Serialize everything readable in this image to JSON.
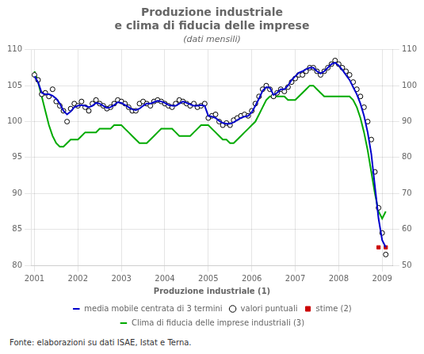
{
  "chart_data": {
    "type": "line",
    "title": [
      "Produzione industriale",
      "e clima di fiducia delle imprese"
    ],
    "subtitle": "(dati mensili)",
    "annotations": [
      "Fonte: elaborazioni su dati ISAE, Istat e Terna."
    ],
    "legend_title": "Produzione industriale (1)",
    "legend": "bottom",
    "grid": true,
    "xlim": [
      2000.92,
      2009.25
    ],
    "xticks": [
      2001,
      2002,
      2003,
      2004,
      2005,
      2006,
      2007,
      2008,
      2009
    ],
    "ylim": [
      80,
      110
    ],
    "yticks": [
      80,
      85,
      90,
      95,
      100,
      105,
      110
    ],
    "y2lim": [
      50,
      110
    ],
    "y2ticks": [
      50,
      60,
      70,
      80,
      90,
      100,
      110
    ],
    "series": [
      {
        "name": "media mobile centrata di 3 termini",
        "type": "line",
        "color": "#0000cc",
        "x": [
          2001.0,
          2001.083,
          2001.167,
          2001.25,
          2001.333,
          2001.417,
          2001.5,
          2001.583,
          2001.667,
          2001.75,
          2001.833,
          2001.917,
          2002.0,
          2002.083,
          2002.167,
          2002.25,
          2002.333,
          2002.417,
          2002.5,
          2002.583,
          2002.667,
          2002.75,
          2002.833,
          2002.917,
          2003.0,
          2003.083,
          2003.167,
          2003.25,
          2003.333,
          2003.417,
          2003.5,
          2003.583,
          2003.667,
          2003.75,
          2003.833,
          2003.917,
          2004.0,
          2004.083,
          2004.167,
          2004.25,
          2004.333,
          2004.417,
          2004.5,
          2004.583,
          2004.667,
          2004.75,
          2004.833,
          2004.917,
          2005.0,
          2005.083,
          2005.167,
          2005.25,
          2005.333,
          2005.417,
          2005.5,
          2005.583,
          2005.667,
          2005.75,
          2005.833,
          2005.917,
          2006.0,
          2006.083,
          2006.167,
          2006.25,
          2006.333,
          2006.417,
          2006.5,
          2006.583,
          2006.667,
          2006.75,
          2006.833,
          2006.917,
          2007.0,
          2007.083,
          2007.167,
          2007.25,
          2007.333,
          2007.417,
          2007.5,
          2007.583,
          2007.667,
          2007.75,
          2007.833,
          2007.917,
          2008.0,
          2008.083,
          2008.167,
          2008.25,
          2008.333,
          2008.417,
          2008.5,
          2008.583,
          2008.667,
          2008.75,
          2008.833,
          2008.917,
          2009.0,
          2009.083
        ],
        "values": [
          106.3,
          105.5,
          104.0,
          103.8,
          103.8,
          103.6,
          103.2,
          102.5,
          101.5,
          101.0,
          101.4,
          102.0,
          102.2,
          102.3,
          102.2,
          102.0,
          102.2,
          102.6,
          102.5,
          102.2,
          101.9,
          102.0,
          102.3,
          102.7,
          102.6,
          102.3,
          102.0,
          101.7,
          101.6,
          101.8,
          102.2,
          102.5,
          102.5,
          102.7,
          102.9,
          102.8,
          102.6,
          102.3,
          102.2,
          102.2,
          102.5,
          102.8,
          102.6,
          102.4,
          102.2,
          102.2,
          102.3,
          102.2,
          100.8,
          100.7,
          100.5,
          100.1,
          99.8,
          99.7,
          99.7,
          99.9,
          100.2,
          100.5,
          100.7,
          100.8,
          101.3,
          102.2,
          103.2,
          104.3,
          104.8,
          104.7,
          103.7,
          104.0,
          104.5,
          104.5,
          105.0,
          105.8,
          106.3,
          106.8,
          107.0,
          107.3,
          107.5,
          107.5,
          107.0,
          106.7,
          107.0,
          107.5,
          108.0,
          108.2,
          107.8,
          107.2,
          106.5,
          105.8,
          104.8,
          103.8,
          102.5,
          100.8,
          98.5,
          95.5,
          91.0,
          86.5,
          83.5,
          82.5
        ]
      },
      {
        "name": "valori puntuali",
        "type": "scatter",
        "marker": "circle_open",
        "color": "#000000",
        "x": [
          2001.0,
          2001.083,
          2001.167,
          2001.25,
          2001.333,
          2001.417,
          2001.5,
          2001.583,
          2001.667,
          2001.75,
          2001.833,
          2001.917,
          2002.0,
          2002.083,
          2002.167,
          2002.25,
          2002.333,
          2002.417,
          2002.5,
          2002.583,
          2002.667,
          2002.75,
          2002.833,
          2002.917,
          2003.0,
          2003.083,
          2003.167,
          2003.25,
          2003.333,
          2003.417,
          2003.5,
          2003.583,
          2003.667,
          2003.75,
          2003.833,
          2003.917,
          2004.0,
          2004.083,
          2004.167,
          2004.25,
          2004.333,
          2004.417,
          2004.5,
          2004.583,
          2004.667,
          2004.75,
          2004.833,
          2004.917,
          2005.0,
          2005.083,
          2005.167,
          2005.25,
          2005.333,
          2005.417,
          2005.5,
          2005.583,
          2005.667,
          2005.75,
          2005.833,
          2005.917,
          2006.0,
          2006.083,
          2006.167,
          2006.25,
          2006.333,
          2006.417,
          2006.5,
          2006.583,
          2006.667,
          2006.75,
          2006.833,
          2006.917,
          2007.0,
          2007.083,
          2007.167,
          2007.25,
          2007.333,
          2007.417,
          2007.5,
          2007.583,
          2007.667,
          2007.75,
          2007.833,
          2007.917,
          2008.0,
          2008.083,
          2008.167,
          2008.25,
          2008.333,
          2008.417,
          2008.5,
          2008.583,
          2008.667,
          2008.75,
          2008.833,
          2008.917,
          2009.0,
          2009.083
        ],
        "values": [
          106.5,
          105.8,
          103.8,
          104.0,
          103.5,
          104.5,
          102.8,
          102.2,
          101.5,
          100.0,
          101.8,
          102.5,
          102.2,
          102.8,
          102.0,
          101.5,
          102.5,
          103.0,
          102.5,
          102.2,
          101.8,
          102.0,
          102.5,
          103.0,
          102.8,
          102.5,
          102.0,
          101.5,
          101.5,
          102.5,
          102.8,
          102.5,
          102.2,
          102.8,
          103.0,
          102.8,
          102.5,
          102.2,
          102.0,
          102.5,
          103.0,
          102.8,
          102.5,
          102.2,
          102.5,
          102.0,
          102.2,
          102.5,
          100.5,
          100.8,
          101.0,
          100.0,
          99.5,
          99.8,
          99.5,
          100.2,
          100.5,
          100.8,
          101.0,
          100.8,
          101.5,
          102.5,
          103.5,
          104.5,
          105.0,
          104.5,
          103.5,
          104.0,
          104.5,
          104.2,
          104.8,
          105.5,
          106.0,
          106.5,
          106.5,
          107.0,
          107.5,
          107.5,
          107.0,
          106.5,
          107.0,
          107.5,
          108.0,
          108.5,
          108.0,
          107.5,
          107.0,
          106.5,
          105.5,
          104.5,
          103.5,
          102.0,
          100.0,
          97.5,
          93.0,
          88.0,
          84.5,
          81.5
        ]
      },
      {
        "name": "stime (2)",
        "type": "scatter",
        "marker": "square",
        "color": "#cc0000",
        "x": [
          2008.917,
          2009.083
        ],
        "values": [
          82.5,
          82.5
        ]
      },
      {
        "name": "Clima di fiducia delle imprese industriali (3)",
        "type": "line",
        "color": "#00aa00",
        "axis": "y2",
        "x": [
          2001.0,
          2001.083,
          2001.167,
          2001.25,
          2001.333,
          2001.417,
          2001.5,
          2001.583,
          2001.667,
          2001.75,
          2001.833,
          2001.917,
          2002.0,
          2002.083,
          2002.167,
          2002.25,
          2002.333,
          2002.417,
          2002.5,
          2002.583,
          2002.667,
          2002.75,
          2002.833,
          2002.917,
          2003.0,
          2003.083,
          2003.167,
          2003.25,
          2003.333,
          2003.417,
          2003.5,
          2003.583,
          2003.667,
          2003.75,
          2003.833,
          2003.917,
          2004.0,
          2004.083,
          2004.167,
          2004.25,
          2004.333,
          2004.417,
          2004.5,
          2004.583,
          2004.667,
          2004.75,
          2004.833,
          2004.917,
          2005.0,
          2005.083,
          2005.167,
          2005.25,
          2005.333,
          2005.417,
          2005.5,
          2005.583,
          2005.667,
          2005.75,
          2005.833,
          2005.917,
          2006.0,
          2006.083,
          2006.167,
          2006.25,
          2006.333,
          2006.417,
          2006.5,
          2006.583,
          2006.667,
          2006.75,
          2006.833,
          2006.917,
          2007.0,
          2007.083,
          2007.167,
          2007.25,
          2007.333,
          2007.417,
          2007.5,
          2007.583,
          2007.667,
          2007.75,
          2007.833,
          2007.917,
          2008.0,
          2008.083,
          2008.167,
          2008.25,
          2008.333,
          2008.417,
          2008.5,
          2008.583,
          2008.667,
          2008.75,
          2008.833,
          2008.917,
          2009.0,
          2009.083
        ],
        "values": [
          104,
          101,
          97,
          93,
          89,
          86,
          84,
          83,
          83,
          84,
          85,
          85,
          85,
          86,
          87,
          87,
          87,
          87,
          88,
          88,
          88,
          88,
          89,
          89,
          89,
          88,
          87,
          86,
          85,
          84,
          84,
          84,
          85,
          86,
          87,
          88,
          88,
          88,
          88,
          87,
          86,
          86,
          86,
          86,
          87,
          88,
          89,
          89,
          89,
          88,
          87,
          86,
          85,
          85,
          84,
          84,
          85,
          86,
          87,
          88,
          89,
          90,
          92,
          94,
          96,
          97,
          97,
          97,
          97,
          97,
          96,
          96,
          96,
          97,
          98,
          99,
          100,
          100,
          99,
          98,
          97,
          97,
          97,
          97,
          97,
          97,
          97,
          97,
          96,
          94,
          91,
          87,
          82,
          76,
          70,
          65,
          63,
          65
        ]
      }
    ]
  }
}
